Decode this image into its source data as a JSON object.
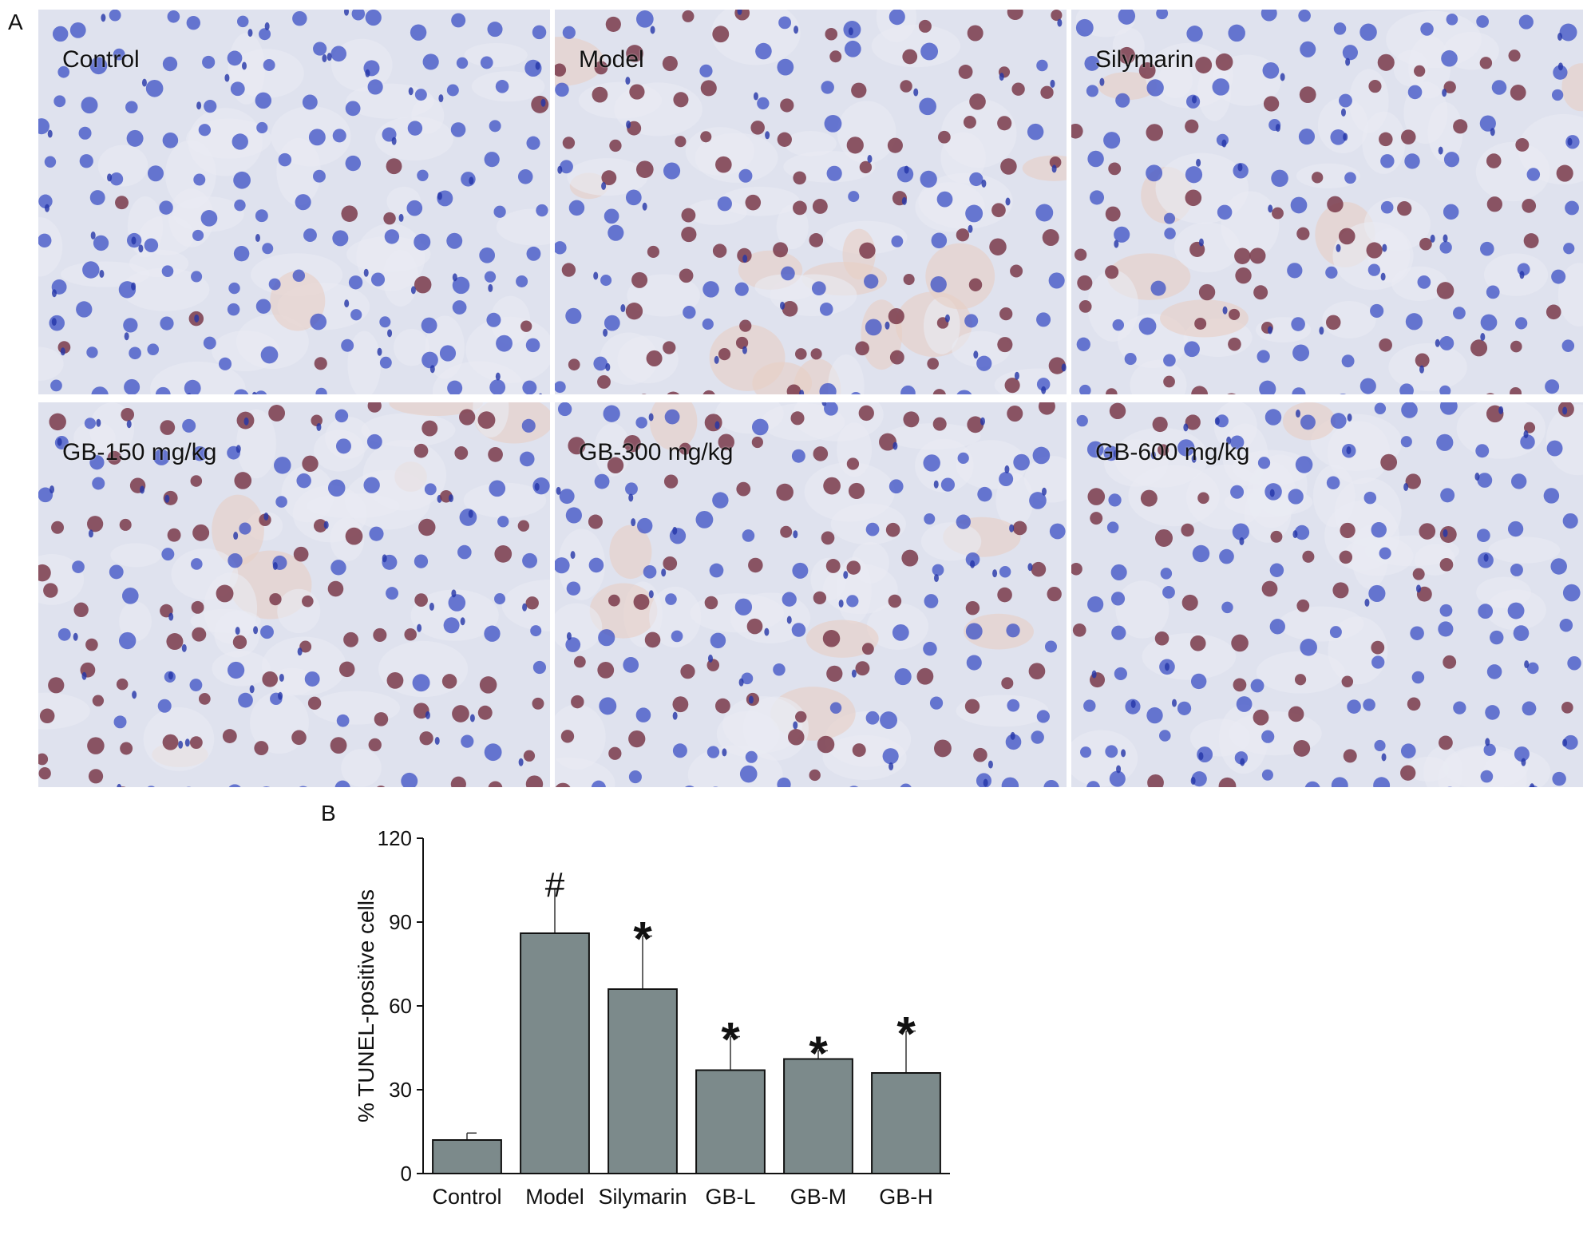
{
  "figure": {
    "panel_a_letter": "A",
    "panel_b_letter": "B"
  },
  "micrographs": [
    {
      "label": "Control",
      "staining": "low"
    },
    {
      "label": "Model",
      "staining": "high"
    },
    {
      "label": "Silymarin",
      "staining": "medium"
    },
    {
      "label": "GB-150 mg/kg",
      "staining": "medium-high"
    },
    {
      "label": "GB-300 mg/kg",
      "staining": "medium"
    },
    {
      "label": "GB-600 mg/kg",
      "staining": "low-medium"
    }
  ],
  "colors": {
    "bar_fill": "#7c8a8b",
    "tissue_bg": "#dfe2ee",
    "nucleus_blue": "#3b4fc4",
    "nucleus_brown": "#7a3a4a"
  },
  "chart_data": {
    "type": "bar",
    "categories": [
      "Control",
      "Model",
      "Silymarin",
      "GB-L",
      "GB-M",
      "GB-H"
    ],
    "values": [
      12,
      86,
      66,
      37,
      41,
      36
    ],
    "errors": [
      2.5,
      16,
      19,
      12,
      3,
      15
    ],
    "annotations": [
      "",
      "#",
      "*",
      "*",
      "*",
      "*"
    ],
    "ylabel": "% TUNEL-positive cells",
    "xlabel": "",
    "ylim": [
      0,
      120
    ],
    "yticks": [
      0,
      30,
      60,
      90,
      120
    ],
    "grid": false
  }
}
